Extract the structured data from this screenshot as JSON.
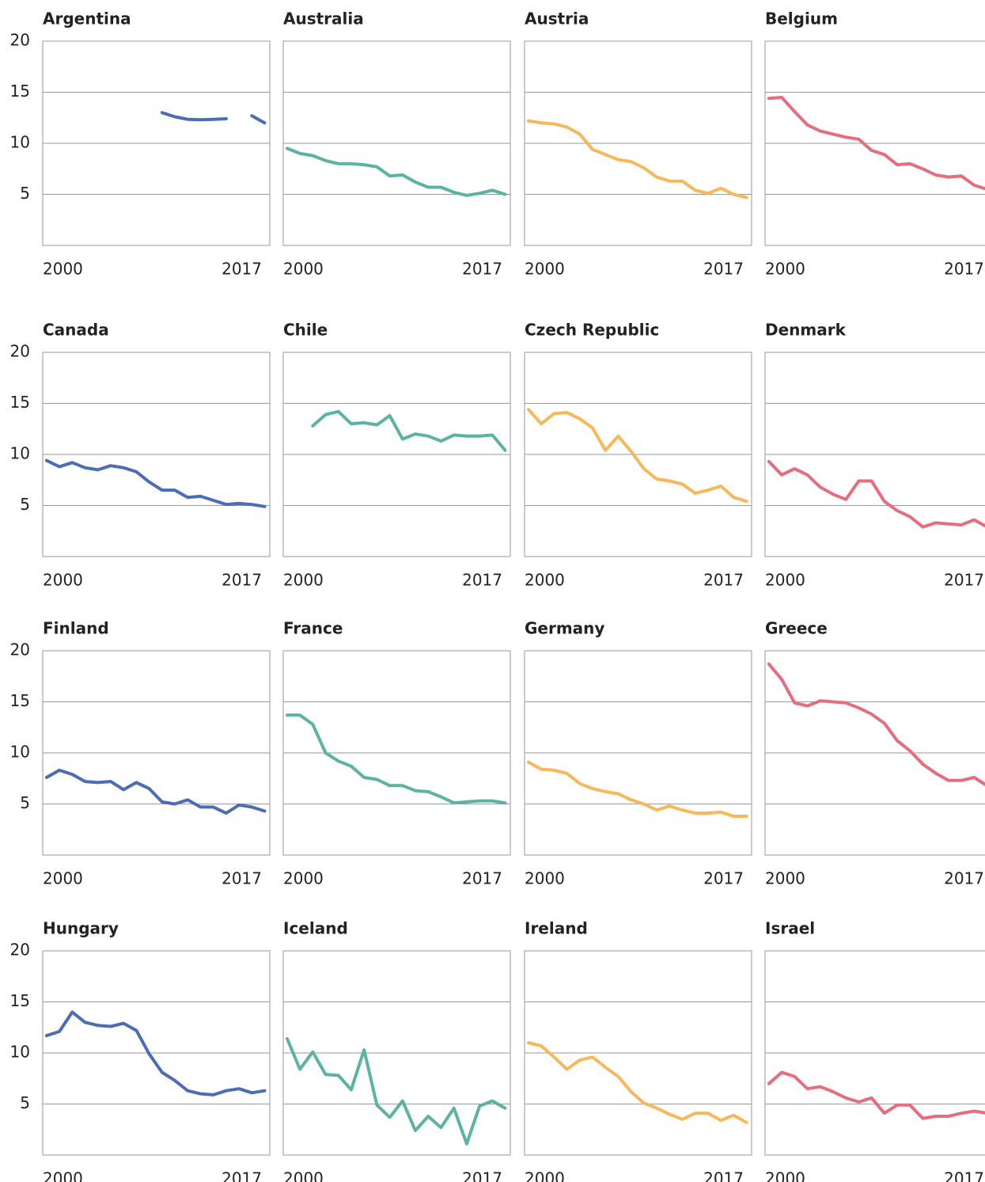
{
  "chart_data": [
    {
      "type": "line",
      "title": "Argentina",
      "x": [
        2000,
        2001,
        2002,
        2003,
        2004,
        2005,
        2006,
        2007,
        2008,
        2009,
        2010,
        2011,
        2012,
        2013,
        2014,
        2015,
        2016,
        2017
      ],
      "series": [
        {
          "color": "#4a6db5",
          "values": [
            null,
            null,
            null,
            null,
            null,
            null,
            null,
            null,
            null,
            13.0,
            12.6,
            12.35,
            12.3,
            12.35,
            12.4,
            null,
            12.7,
            12.0
          ]
        }
      ],
      "xlim": [
        1999.7,
        2017.4
      ],
      "xticks": [
        2000,
        2017
      ],
      "ylim": [
        0,
        20
      ],
      "yticks": [
        5,
        10,
        15,
        20
      ],
      "grid": true
    },
    {
      "type": "line",
      "title": "Australia",
      "x": [
        2000,
        2001,
        2002,
        2003,
        2004,
        2005,
        2006,
        2007,
        2008,
        2009,
        2010,
        2011,
        2012,
        2013,
        2014,
        2015,
        2016,
        2017
      ],
      "series": [
        {
          "color": "#5bb3a1",
          "values": [
            9.5,
            9.0,
            8.8,
            8.3,
            8.0,
            8.0,
            7.9,
            7.7,
            6.8,
            6.9,
            6.2,
            5.7,
            5.7,
            5.2,
            4.9,
            5.1,
            5.4,
            5.0
          ]
        }
      ],
      "xlim": [
        1999.7,
        2017.4
      ],
      "xticks": [
        2000,
        2017
      ],
      "ylim": [
        0,
        20
      ],
      "yticks": [
        5,
        10,
        15,
        20
      ],
      "grid": true
    },
    {
      "type": "line",
      "title": "Austria",
      "x": [
        2000,
        2001,
        2002,
        2003,
        2004,
        2005,
        2006,
        2007,
        2008,
        2009,
        2010,
        2011,
        2012,
        2013,
        2014,
        2015,
        2016,
        2017
      ],
      "series": [
        {
          "color": "#f6b85a",
          "values": [
            12.2,
            12.0,
            11.9,
            11.6,
            10.9,
            9.4,
            8.9,
            8.4,
            8.2,
            7.6,
            6.7,
            6.3,
            6.3,
            5.4,
            5.1,
            5.6,
            5.0,
            4.7
          ]
        }
      ],
      "xlim": [
        1999.7,
        2017.4
      ],
      "xticks": [
        2000,
        2017
      ],
      "ylim": [
        0,
        20
      ],
      "yticks": [
        5,
        10,
        15,
        20
      ],
      "grid": true
    },
    {
      "type": "line",
      "title": "Belgium",
      "x": [
        2000,
        2001,
        2002,
        2003,
        2004,
        2005,
        2006,
        2007,
        2008,
        2009,
        2010,
        2011,
        2012,
        2013,
        2014,
        2015,
        2016,
        2017
      ],
      "series": [
        {
          "color": "#e66e7c",
          "values": [
            14.4,
            14.5,
            13.1,
            11.8,
            11.2,
            10.9,
            10.6,
            10.4,
            9.3,
            8.9,
            7.9,
            8.0,
            7.5,
            6.9,
            6.7,
            6.8,
            5.9,
            5.5
          ]
        }
      ],
      "xlim": [
        1999.7,
        2017.4
      ],
      "xticks": [
        2000,
        2017
      ],
      "ylim": [
        0,
        20
      ],
      "yticks": [
        5,
        10,
        15,
        20
      ],
      "grid": true
    },
    {
      "type": "line",
      "title": "Canada",
      "x": [
        2000,
        2001,
        2002,
        2003,
        2004,
        2005,
        2006,
        2007,
        2008,
        2009,
        2010,
        2011,
        2012,
        2013,
        2014,
        2015,
        2016,
        2017
      ],
      "series": [
        {
          "color": "#4a6db5",
          "values": [
            9.4,
            8.8,
            9.2,
            8.7,
            8.5,
            8.9,
            8.7,
            8.3,
            7.3,
            6.5,
            6.5,
            5.8,
            5.9,
            5.5,
            5.1,
            5.2,
            5.1,
            4.9
          ]
        }
      ],
      "xlim": [
        1999.7,
        2017.4
      ],
      "xticks": [
        2000,
        2017
      ],
      "ylim": [
        0,
        20
      ],
      "yticks": [
        5,
        10,
        15,
        20
      ],
      "grid": true
    },
    {
      "type": "line",
      "title": "Chile",
      "x": [
        2000,
        2001,
        2002,
        2003,
        2004,
        2005,
        2006,
        2007,
        2008,
        2009,
        2010,
        2011,
        2012,
        2013,
        2014,
        2015,
        2016,
        2017
      ],
      "series": [
        {
          "color": "#5bb3a1",
          "values": [
            null,
            null,
            12.8,
            13.9,
            14.2,
            13.0,
            13.1,
            12.9,
            13.8,
            11.5,
            12.0,
            11.8,
            11.3,
            11.9,
            11.8,
            11.8,
            11.9,
            10.4
          ]
        }
      ],
      "xlim": [
        1999.7,
        2017.4
      ],
      "xticks": [
        2000,
        2017
      ],
      "ylim": [
        0,
        20
      ],
      "yticks": [
        5,
        10,
        15,
        20
      ],
      "grid": true
    },
    {
      "type": "line",
      "title": "Czech Republic",
      "x": [
        2000,
        2001,
        2002,
        2003,
        2004,
        2005,
        2006,
        2007,
        2008,
        2009,
        2010,
        2011,
        2012,
        2013,
        2014,
        2015,
        2016,
        2017
      ],
      "series": [
        {
          "color": "#f6b85a",
          "values": [
            14.4,
            13.0,
            14.0,
            14.1,
            13.5,
            12.6,
            10.4,
            11.8,
            10.3,
            8.6,
            7.6,
            7.4,
            7.1,
            6.2,
            6.5,
            6.9,
            5.8,
            5.4
          ]
        }
      ],
      "xlim": [
        1999.7,
        2017.4
      ],
      "xticks": [
        2000,
        2017
      ],
      "ylim": [
        0,
        20
      ],
      "yticks": [
        5,
        10,
        15,
        20
      ],
      "grid": true
    },
    {
      "type": "line",
      "title": "Denmark",
      "x": [
        2000,
        2001,
        2002,
        2003,
        2004,
        2005,
        2006,
        2007,
        2008,
        2009,
        2010,
        2011,
        2012,
        2013,
        2014,
        2015,
        2016,
        2017
      ],
      "series": [
        {
          "color": "#e66e7c",
          "values": [
            9.3,
            8.0,
            8.6,
            8.0,
            6.8,
            6.1,
            5.6,
            7.4,
            7.4,
            5.4,
            4.5,
            3.9,
            2.9,
            3.3,
            3.2,
            3.1,
            3.6,
            2.9
          ]
        }
      ],
      "xlim": [
        1999.7,
        2017.4
      ],
      "xticks": [
        2000,
        2017
      ],
      "ylim": [
        0,
        20
      ],
      "yticks": [
        5,
        10,
        15,
        20
      ],
      "grid": true
    },
    {
      "type": "line",
      "title": "Finland",
      "x": [
        2000,
        2001,
        2002,
        2003,
        2004,
        2005,
        2006,
        2007,
        2008,
        2009,
        2010,
        2011,
        2012,
        2013,
        2014,
        2015,
        2016,
        2017
      ],
      "series": [
        {
          "color": "#4a6db5",
          "values": [
            7.6,
            8.3,
            7.9,
            7.2,
            7.1,
            7.2,
            6.4,
            7.1,
            6.5,
            5.2,
            5.0,
            5.4,
            4.7,
            4.7,
            4.1,
            4.9,
            4.7,
            4.3
          ]
        }
      ],
      "xlim": [
        1999.7,
        2017.4
      ],
      "xticks": [
        2000,
        2017
      ],
      "ylim": [
        0,
        20
      ],
      "yticks": [
        5,
        10,
        15,
        20
      ],
      "grid": true
    },
    {
      "type": "line",
      "title": "France",
      "x": [
        2000,
        2001,
        2002,
        2003,
        2004,
        2005,
        2006,
        2007,
        2008,
        2009,
        2010,
        2011,
        2012,
        2013,
        2014,
        2015,
        2016,
        2017
      ],
      "series": [
        {
          "color": "#5bb3a1",
          "values": [
            13.7,
            13.7,
            12.8,
            10.0,
            9.2,
            8.7,
            7.6,
            7.4,
            6.8,
            6.8,
            6.3,
            6.2,
            5.7,
            5.1,
            5.2,
            5.3,
            5.3,
            5.1
          ]
        }
      ],
      "xlim": [
        1999.7,
        2017.4
      ],
      "xticks": [
        2000,
        2017
      ],
      "ylim": [
        0,
        20
      ],
      "yticks": [
        5,
        10,
        15,
        20
      ],
      "grid": true
    },
    {
      "type": "line",
      "title": "Germany",
      "x": [
        2000,
        2001,
        2002,
        2003,
        2004,
        2005,
        2006,
        2007,
        2008,
        2009,
        2010,
        2011,
        2012,
        2013,
        2014,
        2015,
        2016,
        2017
      ],
      "series": [
        {
          "color": "#f6b85a",
          "values": [
            9.1,
            8.4,
            8.3,
            8.0,
            7.0,
            6.5,
            6.2,
            6.0,
            5.4,
            5.0,
            4.4,
            4.8,
            4.4,
            4.1,
            4.1,
            4.2,
            3.8,
            3.8
          ]
        }
      ],
      "xlim": [
        1999.7,
        2017.4
      ],
      "xticks": [
        2000,
        2017
      ],
      "ylim": [
        0,
        20
      ],
      "yticks": [
        5,
        10,
        15,
        20
      ],
      "grid": true
    },
    {
      "type": "line",
      "title": "Greece",
      "x": [
        2000,
        2001,
        2002,
        2003,
        2004,
        2005,
        2006,
        2007,
        2008,
        2009,
        2010,
        2011,
        2012,
        2013,
        2014,
        2015,
        2016,
        2017
      ],
      "series": [
        {
          "color": "#e66e7c",
          "values": [
            18.7,
            17.2,
            14.9,
            14.6,
            15.1,
            15.0,
            14.9,
            14.4,
            13.8,
            12.9,
            11.2,
            10.2,
            8.9,
            8.0,
            7.3,
            7.3,
            7.6,
            6.8
          ]
        }
      ],
      "xlim": [
        1999.7,
        2017.4
      ],
      "xticks": [
        2000,
        2017
      ],
      "ylim": [
        0,
        20
      ],
      "yticks": [
        5,
        10,
        15,
        20
      ],
      "grid": true
    },
    {
      "type": "line",
      "title": "Hungary",
      "x": [
        2000,
        2001,
        2002,
        2003,
        2004,
        2005,
        2006,
        2007,
        2008,
        2009,
        2010,
        2011,
        2012,
        2013,
        2014,
        2015,
        2016,
        2017
      ],
      "series": [
        {
          "color": "#4a6db5",
          "values": [
            11.7,
            12.1,
            14.0,
            13.0,
            12.7,
            12.6,
            12.9,
            12.2,
            9.9,
            8.1,
            7.3,
            6.3,
            6.0,
            5.9,
            6.3,
            6.5,
            6.1,
            6.3
          ]
        }
      ],
      "xlim": [
        1999.7,
        2017.4
      ],
      "xticks": [
        2000,
        2017
      ],
      "ylim": [
        0,
        20
      ],
      "yticks": [
        5,
        10,
        15,
        20
      ],
      "grid": true
    },
    {
      "type": "line",
      "title": "Iceland",
      "x": [
        2000,
        2001,
        2002,
        2003,
        2004,
        2005,
        2006,
        2007,
        2008,
        2009,
        2010,
        2011,
        2012,
        2013,
        2014,
        2015,
        2016,
        2017
      ],
      "series": [
        {
          "color": "#5bb3a1",
          "values": [
            11.4,
            8.4,
            10.1,
            7.9,
            7.8,
            6.4,
            10.3,
            4.9,
            3.7,
            5.3,
            2.4,
            3.8,
            2.7,
            4.6,
            1.1,
            4.8,
            5.3,
            4.6
          ]
        }
      ],
      "xlim": [
        1999.7,
        2017.4
      ],
      "xticks": [
        2000,
        2017
      ],
      "ylim": [
        0,
        20
      ],
      "yticks": [
        5,
        10,
        15,
        20
      ],
      "grid": true
    },
    {
      "type": "line",
      "title": "Ireland",
      "x": [
        2000,
        2001,
        2002,
        2003,
        2004,
        2005,
        2006,
        2007,
        2008,
        2009,
        2010,
        2011,
        2012,
        2013,
        2014,
        2015,
        2016,
        2017
      ],
      "series": [
        {
          "color": "#f6b85a",
          "values": [
            11.0,
            10.7,
            9.6,
            8.4,
            9.3,
            9.6,
            8.6,
            7.7,
            6.2,
            5.1,
            4.6,
            4.0,
            3.5,
            4.1,
            4.1,
            3.4,
            3.9,
            3.2
          ]
        }
      ],
      "xlim": [
        1999.7,
        2017.4
      ],
      "xticks": [
        2000,
        2017
      ],
      "ylim": [
        0,
        20
      ],
      "yticks": [
        5,
        10,
        15,
        20
      ],
      "grid": true
    },
    {
      "type": "line",
      "title": "Israel",
      "x": [
        2000,
        2001,
        2002,
        2003,
        2004,
        2005,
        2006,
        2007,
        2008,
        2009,
        2010,
        2011,
        2012,
        2013,
        2014,
        2015,
        2016,
        2017
      ],
      "series": [
        {
          "color": "#e66e7c",
          "values": [
            7.0,
            8.1,
            7.7,
            6.5,
            6.7,
            6.2,
            5.6,
            5.2,
            5.6,
            4.1,
            4.9,
            4.9,
            3.6,
            3.8,
            3.8,
            4.1,
            4.3,
            4.1
          ]
        }
      ],
      "xlim": [
        1999.7,
        2017.4
      ],
      "xticks": [
        2000,
        2017
      ],
      "ylim": [
        0,
        20
      ],
      "yticks": [
        5,
        10,
        15,
        20
      ],
      "grid": true
    }
  ]
}
